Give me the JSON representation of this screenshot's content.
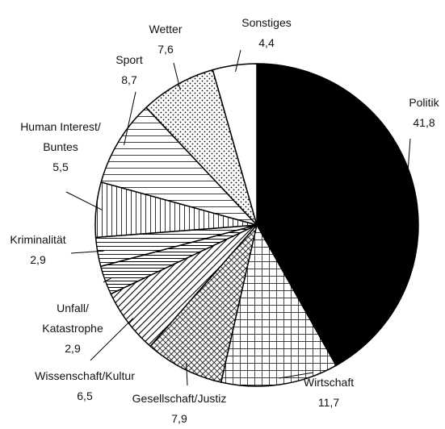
{
  "chart_data": {
    "type": "pie",
    "categories": [
      "Politik",
      "Wirtschaft",
      "Gesellschaft/Justiz",
      "Wissenschaft/Kultur",
      "Unfall/\nKatastrophe",
      "Kriminalität",
      "Human Interest/\nBuntes",
      "Sport",
      "Wetter",
      "Sonstiges"
    ],
    "values": [
      41.8,
      11.7,
      7.9,
      6.5,
      2.9,
      2.9,
      5.5,
      8.7,
      7.6,
      4.4
    ],
    "value_labels": [
      "41,8",
      "11,7",
      "7,9",
      "6,5",
      "2,9",
      "2,9",
      "5,5",
      "8,7",
      "7,6",
      "4,4"
    ],
    "patterns": [
      "solid",
      "grid",
      "crosshatch",
      "diagonal",
      "hlines-dense",
      "hlines",
      "vlines",
      "hlines-wide",
      "dots",
      "none"
    ],
    "start_angle": -90,
    "direction": "clockwise"
  }
}
